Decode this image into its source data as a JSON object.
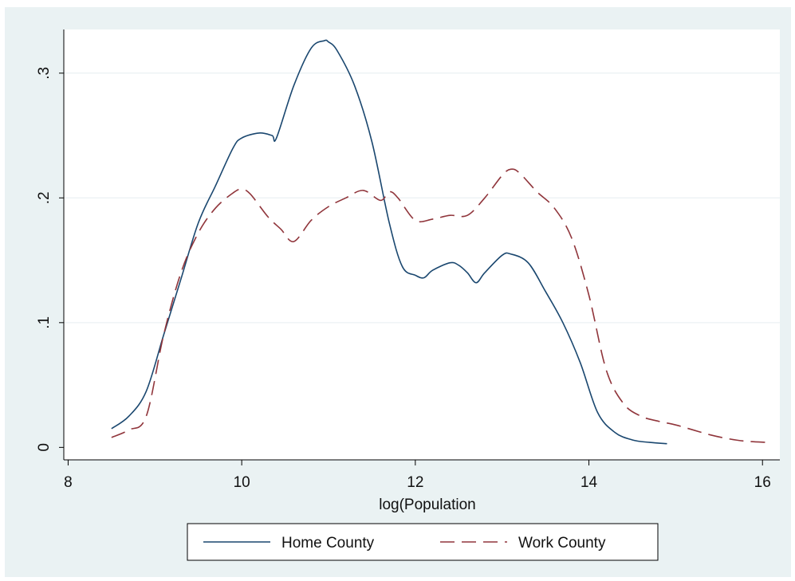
{
  "chart_data": {
    "type": "line",
    "title": "",
    "xlabel": "log(Population",
    "ylabel": "",
    "xlim": [
      7.95,
      16.2
    ],
    "ylim": [
      -0.01,
      0.335
    ],
    "xticks": [
      8,
      10,
      12,
      14,
      16
    ],
    "xtick_labels": [
      "8",
      "10",
      "12",
      "14",
      "16"
    ],
    "yticks": [
      0,
      0.1,
      0.2,
      0.3
    ],
    "ytick_labels": [
      "0",
      ".1",
      ".2",
      ".3"
    ],
    "grid": "horizontal",
    "legend_position": "bottom",
    "series": [
      {
        "name": "Home County",
        "color": "#1a476f",
        "dash": "solid",
        "x": [
          8.5,
          8.7,
          8.9,
          9.1,
          9.3,
          9.5,
          9.7,
          9.9,
          10.0,
          10.2,
          10.35,
          10.4,
          10.6,
          10.8,
          10.95,
          11.0,
          11.1,
          11.3,
          11.5,
          11.7,
          11.85,
          12.0,
          12.1,
          12.2,
          12.4,
          12.5,
          12.6,
          12.7,
          12.8,
          13.0,
          13.1,
          13.3,
          13.5,
          13.7,
          13.9,
          14.1,
          14.3,
          14.5,
          14.7,
          14.9
        ],
        "y": [
          0.015,
          0.025,
          0.045,
          0.09,
          0.135,
          0.18,
          0.21,
          0.24,
          0.248,
          0.252,
          0.25,
          0.248,
          0.29,
          0.32,
          0.326,
          0.325,
          0.318,
          0.29,
          0.245,
          0.18,
          0.145,
          0.138,
          0.136,
          0.142,
          0.148,
          0.146,
          0.14,
          0.132,
          0.14,
          0.154,
          0.155,
          0.148,
          0.125,
          0.1,
          0.068,
          0.028,
          0.012,
          0.006,
          0.004,
          0.003
        ]
      },
      {
        "name": "Work County",
        "color": "#90353b",
        "dash": "dashed",
        "x": [
          8.5,
          8.7,
          8.9,
          9.1,
          9.3,
          9.5,
          9.7,
          9.9,
          10.0,
          10.1,
          10.3,
          10.45,
          10.6,
          10.8,
          11.0,
          11.2,
          11.4,
          11.6,
          11.7,
          11.8,
          12.0,
          12.2,
          12.4,
          12.6,
          12.8,
          13.0,
          13.1,
          13.2,
          13.4,
          13.6,
          13.8,
          14.0,
          14.2,
          14.4,
          14.6,
          14.8,
          15.0,
          15.2,
          15.4,
          15.6,
          15.8,
          16.05
        ],
        "y": [
          0.008,
          0.014,
          0.025,
          0.09,
          0.14,
          0.172,
          0.192,
          0.204,
          0.207,
          0.203,
          0.185,
          0.175,
          0.165,
          0.182,
          0.193,
          0.2,
          0.206,
          0.198,
          0.205,
          0.2,
          0.182,
          0.183,
          0.186,
          0.186,
          0.2,
          0.218,
          0.223,
          0.22,
          0.205,
          0.192,
          0.168,
          0.122,
          0.062,
          0.035,
          0.025,
          0.021,
          0.018,
          0.014,
          0.01,
          0.007,
          0.005,
          0.004
        ]
      }
    ]
  }
}
